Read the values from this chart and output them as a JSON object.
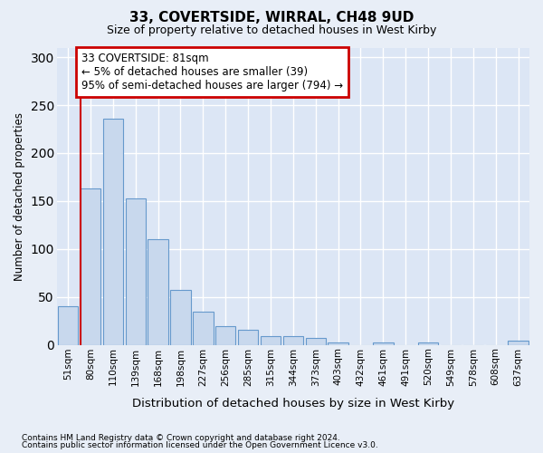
{
  "title1": "33, COVERTSIDE, WIRRAL, CH48 9UD",
  "title2": "Size of property relative to detached houses in West Kirby",
  "xlabel": "Distribution of detached houses by size in West Kirby",
  "ylabel": "Number of detached properties",
  "categories": [
    "51sqm",
    "80sqm",
    "110sqm",
    "139sqm",
    "168sqm",
    "198sqm",
    "227sqm",
    "256sqm",
    "285sqm",
    "315sqm",
    "344sqm",
    "373sqm",
    "403sqm",
    "432sqm",
    "461sqm",
    "491sqm",
    "520sqm",
    "549sqm",
    "578sqm",
    "608sqm",
    "637sqm"
  ],
  "values": [
    40,
    163,
    236,
    153,
    110,
    57,
    35,
    20,
    16,
    9,
    9,
    7,
    3,
    0,
    3,
    0,
    3,
    0,
    0,
    0,
    4
  ],
  "bar_color": "#c8d8ed",
  "bar_edge_color": "#6699cc",
  "annotation_text_line1": "33 COVERTSIDE: 81sqm",
  "annotation_text_line2": "← 5% of detached houses are smaller (39)",
  "annotation_text_line3": "95% of semi-detached houses are larger (794) →",
  "annotation_box_edge": "#cc0000",
  "vline_color": "#cc0000",
  "footnote1": "Contains HM Land Registry data © Crown copyright and database right 2024.",
  "footnote2": "Contains public sector information licensed under the Open Government Licence v3.0.",
  "ylim_max": 310,
  "yticks": [
    0,
    50,
    100,
    150,
    200,
    250,
    300
  ],
  "fig_bg_color": "#e8eef7",
  "axes_bg_color": "#dce6f5",
  "grid_color": "#ffffff",
  "vline_x_idx": 0.56
}
